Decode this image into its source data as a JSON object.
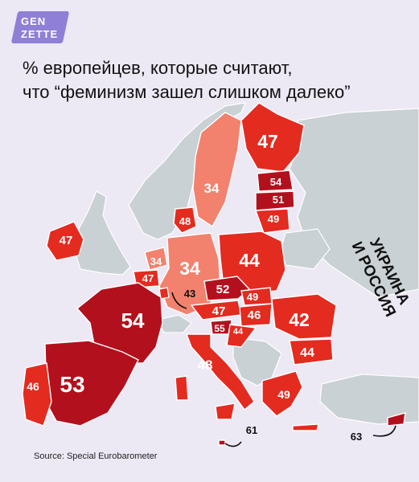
{
  "brand": {
    "line1": "GEN",
    "line2": "ZETTE",
    "color": "#8f7fd6"
  },
  "title": {
    "line1": "% европейцев, которые считают,",
    "line2": "что “феминизм зашел слишком далеко”"
  },
  "source": "Source: Special Eurobarometer",
  "label_region": {
    "line1": "УКРАИНА",
    "line2": "И РОССИЯ"
  },
  "colors": {
    "background": "#ece8f4",
    "no_data": "#c9d1d4",
    "high": "#b3101e",
    "mid": "#e32b20",
    "low": "#f2826e"
  },
  "countries": [
    {
      "id": "finland",
      "value": "47"
    },
    {
      "id": "sweden",
      "value": "34"
    },
    {
      "id": "estonia",
      "value": "54"
    },
    {
      "id": "latvia",
      "value": "51"
    },
    {
      "id": "lithuania",
      "value": "49"
    },
    {
      "id": "denmark",
      "value": "48"
    },
    {
      "id": "ireland",
      "value": "47"
    },
    {
      "id": "netherlands",
      "value": "34"
    },
    {
      "id": "belgium",
      "value": "47"
    },
    {
      "id": "germany",
      "value": "34"
    },
    {
      "id": "poland",
      "value": "44"
    },
    {
      "id": "luxembourg",
      "value": "43"
    },
    {
      "id": "czechia",
      "value": "52"
    },
    {
      "id": "slovakia",
      "value": "49"
    },
    {
      "id": "austria",
      "value": "47"
    },
    {
      "id": "hungary",
      "value": "46"
    },
    {
      "id": "slovenia",
      "value": "55"
    },
    {
      "id": "croatia",
      "value": "44"
    },
    {
      "id": "romania",
      "value": "42"
    },
    {
      "id": "bulgaria",
      "value": "44"
    },
    {
      "id": "france",
      "value": "54"
    },
    {
      "id": "italy",
      "value": "48"
    },
    {
      "id": "spain",
      "value": "53"
    },
    {
      "id": "portugal",
      "value": "46"
    },
    {
      "id": "greece",
      "value": "49"
    },
    {
      "id": "malta",
      "value": "61"
    },
    {
      "id": "cyprus",
      "value": "63"
    }
  ]
}
